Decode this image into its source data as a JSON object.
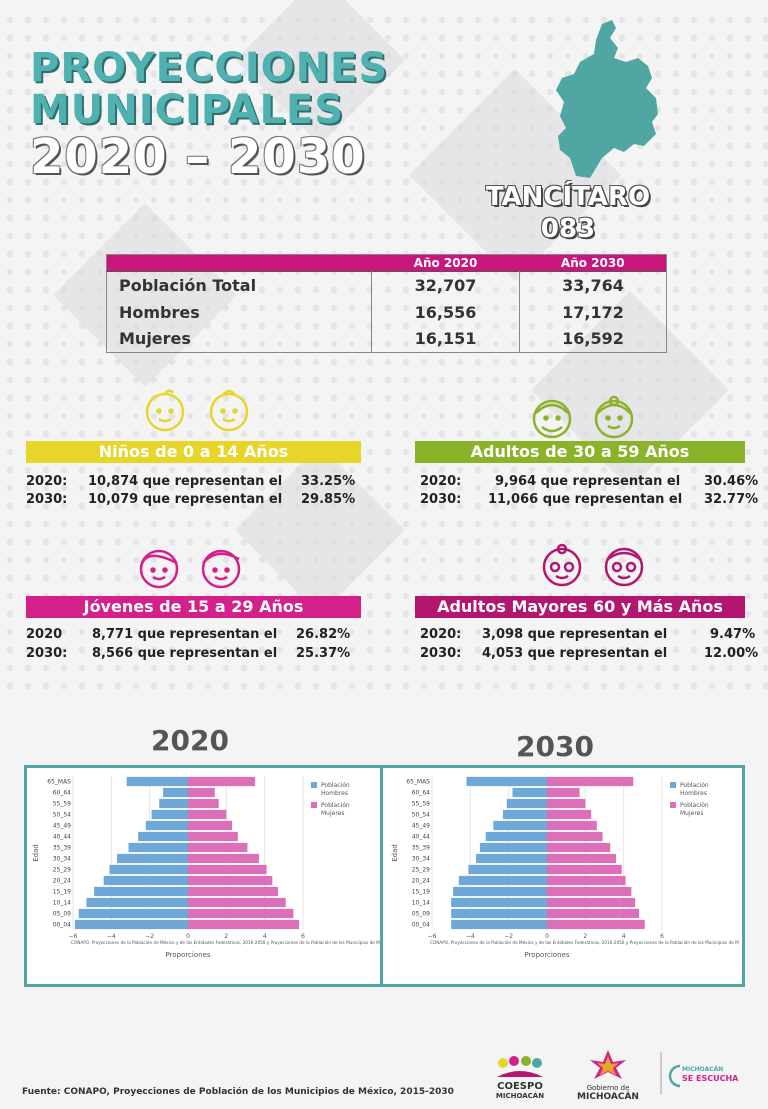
{
  "header": {
    "title_line1": "PROYECCIONES",
    "title_line2": "MUNICIPALES",
    "title_line3": "2020 – 2030"
  },
  "municipality": {
    "name": "TANCÍTARO",
    "code": "083"
  },
  "summary_table": {
    "headers": [
      "",
      "Año 2020",
      "Año 2030"
    ],
    "rows": [
      {
        "label": "Población Total",
        "y2020": "32,707",
        "y2030": "33,764"
      },
      {
        "label": "Hombres",
        "y2020": "16,556",
        "y2030": "17,172"
      },
      {
        "label": "Mujeres",
        "y2020": "16,151",
        "y2030": "16,592"
      }
    ]
  },
  "groups": [
    {
      "title": "Niños de 0 a 14 Años",
      "color": "#e8d52a",
      "rows": [
        {
          "year": "2020:",
          "text": "10,874 que representan el",
          "pct": "33.25%"
        },
        {
          "year": "2030:",
          "text": "10,079 que representan el",
          "pct": "29.85%"
        }
      ]
    },
    {
      "title": "Adultos de 30 a 59 Años",
      "color": "#8bb32a",
      "rows": [
        {
          "year": "2020:",
          "text": "9,964 que representan el",
          "pct": "30.46%"
        },
        {
          "year": "2030:",
          "text": "11,066 que representan el",
          "pct": "32.77%"
        }
      ]
    },
    {
      "title": "Jóvenes de 15 a 29 Años",
      "color": "#d4208a",
      "rows": [
        {
          "year": "2020",
          "text": "8,771 que representan el",
          "pct": "26.82%"
        },
        {
          "year": "2030:",
          "text": "8,566 que representan el",
          "pct": "25.37%"
        }
      ]
    },
    {
      "title": "Adultos Mayores  60 y Más Años",
      "color": "#b3166f",
      "rows": [
        {
          "year": "2020:",
          "text": "3,098 que representan el",
          "pct": "9.47%"
        },
        {
          "year": "2030:",
          "text": "4,053 que representan el",
          "pct": "12.00%"
        }
      ]
    }
  ],
  "chart_data": [
    {
      "type": "bar",
      "title": "2020",
      "xlabel": "Proporciones",
      "ylabel": "Edad",
      "categories": [
        "00_04",
        "05_09",
        "10_14",
        "15_19",
        "20_24",
        "25_29",
        "30_34",
        "35_39",
        "40_44",
        "45_49",
        "50_54",
        "55_59",
        "60_64",
        "65_MAS"
      ],
      "series": [
        {
          "name": "Población Hombres",
          "color": "#6ea8d8",
          "values": [
            -5.9,
            -5.7,
            -5.3,
            -4.9,
            -4.4,
            -4.1,
            -3.7,
            -3.1,
            -2.6,
            -2.2,
            -1.9,
            -1.5,
            -1.3,
            -3.2
          ]
        },
        {
          "name": "Población Mujeres",
          "color": "#dc6fb7",
          "values": [
            5.8,
            5.5,
            5.1,
            4.7,
            4.4,
            4.1,
            3.7,
            3.1,
            2.6,
            2.3,
            2.0,
            1.6,
            1.4,
            3.5
          ]
        }
      ],
      "xlim": [
        -6,
        6
      ],
      "xticks": [
        -6,
        -4,
        -2,
        0,
        2,
        4,
        6
      ],
      "legend": "top-right",
      "source_note": "CONAPO, Proyecciones de la Población de México y de las Entidades Federativas, 2016-2050 y Proyecciones de la Población de los Municipios de México."
    },
    {
      "type": "bar",
      "title": "2030",
      "xlabel": "Proporciones",
      "ylabel": "Edad",
      "categories": [
        "00_04",
        "05_09",
        "10_14",
        "15_19",
        "20_24",
        "25_29",
        "30_34",
        "35_39",
        "40_44",
        "45_49",
        "50_54",
        "55_59",
        "60_64",
        "65_MAS"
      ],
      "series": [
        {
          "name": "Población Hombres",
          "color": "#6ea8d8",
          "values": [
            -5.0,
            -5.0,
            -5.0,
            -4.9,
            -4.6,
            -4.1,
            -3.7,
            -3.5,
            -3.2,
            -2.8,
            -2.3,
            -2.1,
            -1.8,
            -4.2
          ]
        },
        {
          "name": "Población Mujeres",
          "color": "#dc6fb7",
          "values": [
            5.1,
            4.8,
            4.6,
            4.4,
            4.1,
            3.9,
            3.6,
            3.3,
            2.9,
            2.6,
            2.3,
            2.0,
            1.7,
            4.5
          ]
        }
      ],
      "xlim": [
        -6,
        6
      ],
      "xticks": [
        -6,
        -4,
        -2,
        0,
        2,
        4,
        6
      ],
      "legend": "top-right",
      "source_note": "CONAPO, Proyecciones de la Población de México y de las Entidades Federativas, 2016-2050 y Proyecciones de la Población de los Municipios de México."
    }
  ],
  "footer": {
    "source": "Fuente: CONAPO, Proyecciones de Población de los Municipios de México, 2015-2030",
    "logo1_line1": "COESPO",
    "logo1_line2": "MICHOACÁN",
    "logo2_line1": "Gobierno de",
    "logo2_line2": "MICHOACÁN",
    "logo3_line1": "MICHOACÁN",
    "logo3_line2": "SE ESCUCHA"
  }
}
